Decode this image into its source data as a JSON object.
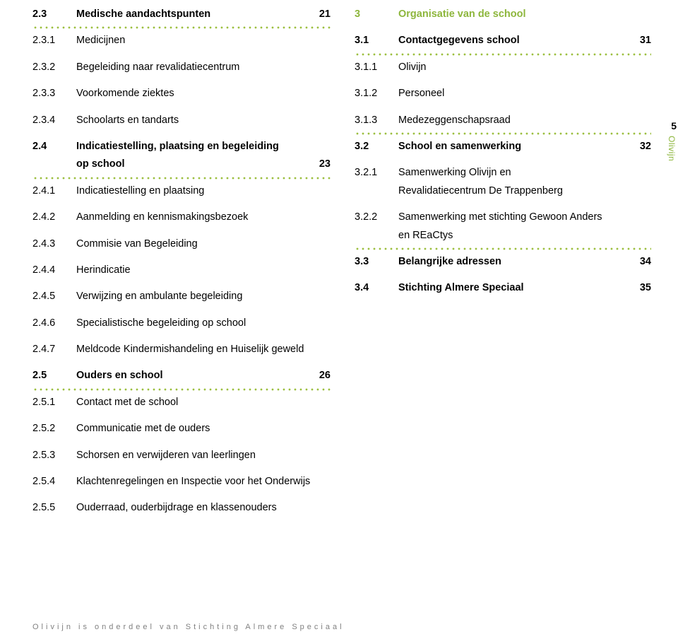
{
  "colors": {
    "accent": "#8db63c",
    "dot": "#9bbf3e",
    "text": "#000000",
    "footer": "#808080",
    "bg": "#ffffff"
  },
  "left": {
    "s23": {
      "num": "2.3",
      "label": "Medische aandachtspunten",
      "page": "21"
    },
    "i231": {
      "num": "2.3.1",
      "label": "Medicijnen"
    },
    "i232": {
      "num": "2.3.2",
      "label": "Begeleiding naar revalidatiecentrum"
    },
    "i233": {
      "num": "2.3.3",
      "label": "Voorkomende ziektes"
    },
    "i234": {
      "num": "2.3.4",
      "label": "Schoolarts en tandarts"
    },
    "s24a": {
      "num": "2.4",
      "label": "Indicatiestelling, plaatsing en begeleiding"
    },
    "s24b": {
      "num": "",
      "label": "op school",
      "page": "23"
    },
    "i241": {
      "num": "2.4.1",
      "label": "Indicatiestelling en plaatsing"
    },
    "i242": {
      "num": "2.4.2",
      "label": "Aanmelding en kennismakingsbezoek"
    },
    "i243": {
      "num": "2.4.3",
      "label": "Commisie van Begeleiding"
    },
    "i244": {
      "num": "2.4.4",
      "label": "Herindicatie"
    },
    "i245": {
      "num": "2.4.5",
      "label": "Verwijzing en ambulante begeleiding"
    },
    "i246": {
      "num": "2.4.6",
      "label": "Specialistische begeleiding op school"
    },
    "i247": {
      "num": "2.4.7",
      "label": "Meldcode Kindermishandeling en Huiselijk geweld"
    },
    "s25": {
      "num": "2.5",
      "label": "Ouders en school",
      "page": "26"
    },
    "i251": {
      "num": "2.5.1",
      "label": "Contact met de school"
    },
    "i252": {
      "num": "2.5.2",
      "label": "Communicatie met de ouders"
    },
    "i253": {
      "num": "2.5.3",
      "label": "Schorsen en verwijderen van leerlingen"
    },
    "i254": {
      "num": "2.5.4",
      "label": "Klachtenregelingen en Inspectie voor het Onderwijs"
    },
    "i255": {
      "num": "2.5.5",
      "label": "Ouderraad, ouderbijdrage en klassenouders"
    }
  },
  "right": {
    "s3": {
      "num": "3",
      "label": "Organisatie van de school"
    },
    "s31": {
      "num": "3.1",
      "label": "Contactgegevens school",
      "page": "31"
    },
    "i311": {
      "num": "3.1.1",
      "label": "Olivijn"
    },
    "i312": {
      "num": "3.1.2",
      "label": "Personeel"
    },
    "i313": {
      "num": "3.1.3",
      "label": "Medezeggenschapsraad"
    },
    "s32": {
      "num": "3.2",
      "label": "School en samenwerking",
      "page": "32"
    },
    "i321a": {
      "num": "3.2.1",
      "label": "Samenwerking Olivijn en"
    },
    "i321b": {
      "num": "",
      "label": "Revalidatiecentrum De Trappenberg"
    },
    "i322a": {
      "num": "3.2.2",
      "label": "Samenwerking met stichting Gewoon Anders"
    },
    "i322b": {
      "num": "",
      "label": "en REaCtys"
    },
    "s33": {
      "num": "3.3",
      "label": "Belangrijke adressen",
      "page": "34"
    },
    "s34": {
      "num": "3.4",
      "label": "Stichting Almere Speciaal",
      "page": "35"
    }
  },
  "side": {
    "page": "5",
    "label": "Olivijn"
  },
  "footer": "Olivijn is onderdeel van Stichting Almere Speciaal"
}
